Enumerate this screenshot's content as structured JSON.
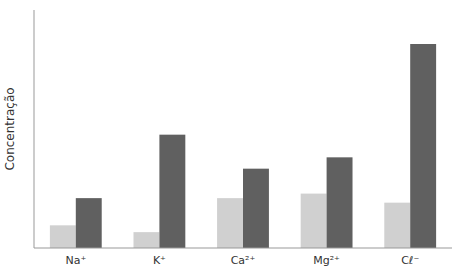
{
  "chart_data": {
    "type": "bar",
    "categories": [
      "Na⁺",
      "K⁺",
      "Ca²⁺",
      "Mg²⁺",
      "Cℓ⁻"
    ],
    "series": [
      {
        "color": "#d0d0d0",
        "values": [
          1.0,
          0.7,
          2.2,
          2.4,
          2.0
        ]
      },
      {
        "color": "#606060",
        "values": [
          2.2,
          5.0,
          3.5,
          4.0,
          9.0
        ]
      }
    ],
    "ylabel": "Concentração",
    "ylim": [
      0,
      10.5
    ],
    "tick_labels": "x",
    "grid": false
  }
}
